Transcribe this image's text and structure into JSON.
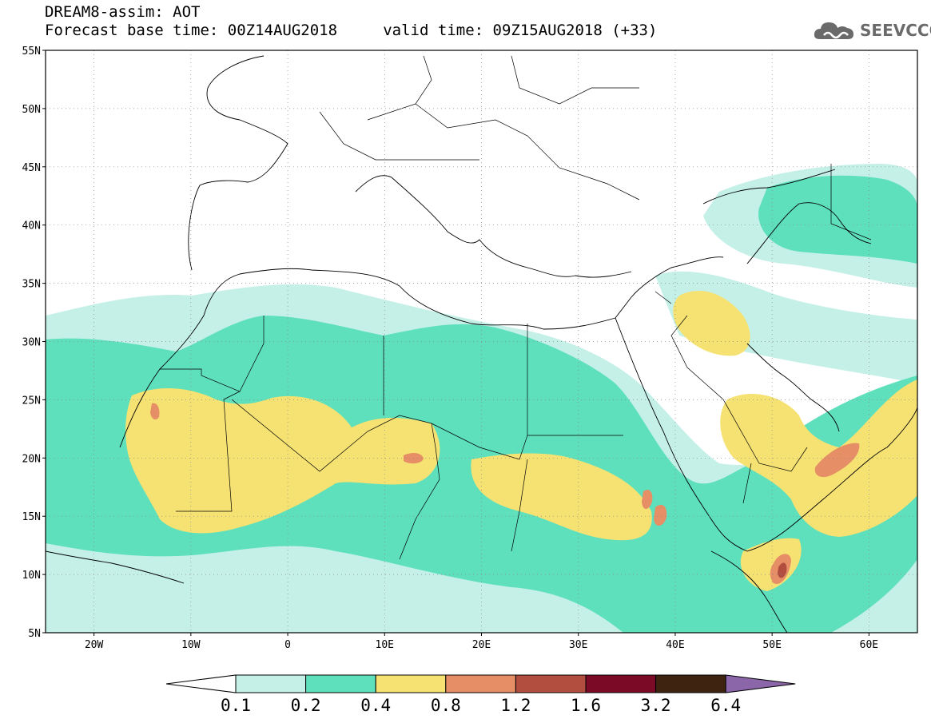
{
  "header": {
    "title_line1": "DREAM8-assim: AOT",
    "title_line2": "Forecast base time: 00Z14AUG2018     valid time: 09Z15AUG2018 (+33)"
  },
  "logo": {
    "text": "SEEVCCC",
    "icon": "cloud-icon",
    "color": "#6a6a6a"
  },
  "map": {
    "lon_range": [
      -25,
      65
    ],
    "lat_range": [
      5,
      55
    ],
    "lat_labels": [
      "5N",
      "10N",
      "15N",
      "20N",
      "25N",
      "30N",
      "35N",
      "40N",
      "45N",
      "50N",
      "55N"
    ],
    "lon_labels": [
      "20W",
      "10W",
      "0",
      "10E",
      "20E",
      "30E",
      "40E",
      "50E",
      "60E"
    ],
    "gridlines": "dotted"
  },
  "colorbar": {
    "levels": [
      "0.1",
      "0.2",
      "0.4",
      "0.8",
      "1.2",
      "1.6",
      "3.2",
      "6.4"
    ],
    "colors": [
      "#c4f0e8",
      "#5fe0bc",
      "#f5e273",
      "#e68e65",
      "#b24e40",
      "#7b0a26",
      "#3e2410",
      "#8b66a8"
    ],
    "under_color": "#ffffff"
  }
}
